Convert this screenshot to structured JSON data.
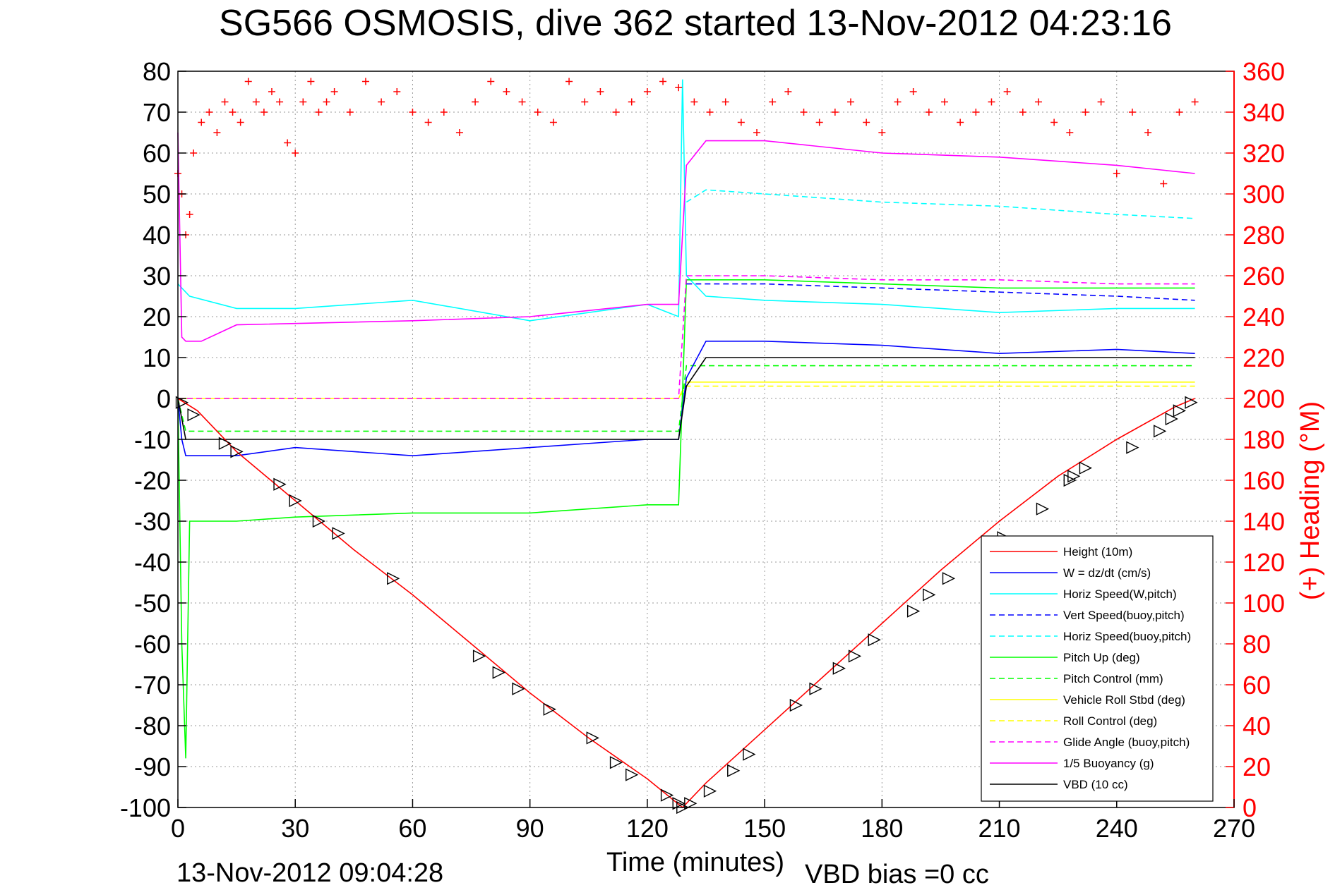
{
  "chart_data": {
    "type": "line",
    "title": "SG566 OSMOSIS, dive 362 started 13-Nov-2012 04:23:16",
    "xlabel": "Time (minutes)",
    "ylabel_right": "(+) Heading (°M)",
    "xlim": [
      0,
      270
    ],
    "ylim": [
      -100,
      80
    ],
    "ylim_right": [
      0,
      360
    ],
    "x_ticks": [
      0,
      30,
      60,
      90,
      120,
      150,
      180,
      210,
      240,
      270
    ],
    "y_ticks": [
      80,
      70,
      60,
      50,
      40,
      30,
      20,
      10,
      0,
      -10,
      -20,
      -30,
      -40,
      -50,
      -60,
      -70,
      -80,
      -90,
      -100
    ],
    "y_ticks_right": [
      360,
      340,
      320,
      300,
      280,
      260,
      240,
      220,
      200,
      180,
      160,
      140,
      120,
      100,
      80,
      60,
      40,
      20,
      0
    ],
    "grid": true,
    "legend_position": "lower-right",
    "footer_left": "13-Nov-2012 09:04:28",
    "footer_right": "VBD bias =0 cc",
    "series": [
      {
        "name": "Height (10m)",
        "color": "#ff0000",
        "style": "solid",
        "x": [
          0,
          5,
          15,
          30,
          45,
          60,
          75,
          90,
          105,
          120,
          129,
          135,
          150,
          165,
          180,
          195,
          210,
          225,
          240,
          255,
          260
        ],
        "y": [
          0,
          -3,
          -13,
          -25,
          -37,
          -48,
          -60,
          -72,
          -83,
          -93,
          -100,
          -94,
          -81,
          -68,
          -55,
          -42,
          -30,
          -19,
          -10,
          -2,
          0
        ]
      },
      {
        "name": "W = dz/dt (cm/s)",
        "color": "#0000ff",
        "style": "solid",
        "x": [
          0,
          1,
          2,
          15,
          30,
          60,
          90,
          120,
          128,
          130,
          135,
          150,
          180,
          210,
          240,
          260
        ],
        "y": [
          0,
          -10,
          -14,
          -14,
          -12,
          -14,
          -12,
          -10,
          -10,
          5,
          14,
          14,
          13,
          11,
          12,
          11
        ]
      },
      {
        "name": "Horiz Speed(W,pitch)",
        "color": "#00ffff",
        "style": "solid",
        "x": [
          0,
          3,
          15,
          30,
          60,
          90,
          120,
          128,
          129,
          130,
          135,
          150,
          180,
          210,
          240,
          260
        ],
        "y": [
          28,
          25,
          22,
          22,
          24,
          19,
          23,
          20,
          78,
          30,
          25,
          24,
          23,
          21,
          22,
          22
        ]
      },
      {
        "name": "Vert Speed(buoy,pitch)",
        "color": "#0000ff",
        "style": "dashed",
        "x": [
          130,
          135,
          150,
          180,
          210,
          240,
          260
        ],
        "y": [
          28,
          28,
          28,
          27,
          26,
          25,
          24
        ]
      },
      {
        "name": "Horiz Speed(buoy,pitch)",
        "color": "#00ffff",
        "style": "dashed",
        "x": [
          130,
          135,
          150,
          180,
          210,
          240,
          260
        ],
        "y": [
          48,
          51,
          50,
          48,
          47,
          45,
          44
        ]
      },
      {
        "name": "Pitch Up (deg)",
        "color": "#00ff00",
        "style": "solid",
        "x": [
          0,
          1,
          2,
          3,
          15,
          30,
          60,
          90,
          120,
          128,
          130,
          135,
          150,
          180,
          210,
          240,
          260
        ],
        "y": [
          0,
          -60,
          -88,
          -30,
          -30,
          -29,
          -28,
          -28,
          -26,
          -26,
          29,
          29,
          29,
          28,
          27,
          27,
          27
        ]
      },
      {
        "name": "Pitch Control (mm)",
        "color": "#00ff00",
        "style": "dashed",
        "x": [
          0,
          2,
          128,
          130,
          260
        ],
        "y": [
          0,
          -8,
          -8,
          8,
          8
        ]
      },
      {
        "name": "Vehicle Roll Stbd (deg)",
        "color": "#ffff00",
        "style": "solid",
        "x": [
          0,
          2,
          128,
          130,
          260
        ],
        "y": [
          0,
          0,
          0,
          4,
          4
        ]
      },
      {
        "name": "Roll Control (deg)",
        "color": "#ffff00",
        "style": "dashed",
        "x": [
          0,
          128,
          130,
          260
        ],
        "y": [
          0,
          0,
          3,
          3
        ]
      },
      {
        "name": "Glide Angle (buoy,pitch)",
        "color": "#ff00ff",
        "style": "dashed",
        "x": [
          0,
          128,
          130,
          150,
          180,
          210,
          240,
          260
        ],
        "y": [
          0,
          0,
          30,
          30,
          29,
          29,
          28,
          28
        ]
      },
      {
        "name": "1/5 Buoyancy (g)",
        "color": "#ff00ff",
        "style": "solid",
        "x": [
          0,
          1,
          2,
          6,
          15,
          60,
          90,
          120,
          128,
          130,
          135,
          150,
          180,
          210,
          240,
          260
        ],
        "y": [
          65,
          15,
          14,
          14,
          18,
          19,
          20,
          23,
          23,
          57,
          63,
          63,
          60,
          59,
          57,
          55
        ]
      },
      {
        "name": "VBD (10 cc)",
        "color": "#000000",
        "style": "solid",
        "x": [
          0,
          2,
          128,
          130,
          135,
          260
        ],
        "y": [
          0,
          -10,
          -10,
          3,
          10,
          10
        ]
      }
    ],
    "heading_points": {
      "name": "Heading",
      "axis": "right",
      "marker": "+",
      "color": "#ff0000",
      "x": [
        0,
        1,
        2,
        3,
        4,
        6,
        8,
        10,
        12,
        14,
        16,
        18,
        20,
        22,
        24,
        26,
        28,
        30,
        32,
        34,
        36,
        38,
        40,
        44,
        48,
        52,
        56,
        60,
        64,
        68,
        72,
        76,
        80,
        84,
        88,
        92,
        96,
        100,
        104,
        108,
        112,
        116,
        120,
        124,
        128,
        132,
        136,
        140,
        144,
        148,
        152,
        156,
        160,
        164,
        168,
        172,
        176,
        180,
        184,
        188,
        192,
        196,
        200,
        204,
        208,
        212,
        216,
        220,
        224,
        228,
        232,
        236,
        240,
        244,
        248,
        252,
        256,
        260
      ],
      "y": [
        310,
        300,
        280,
        290,
        320,
        335,
        340,
        330,
        345,
        340,
        335,
        355,
        345,
        340,
        350,
        345,
        325,
        320,
        345,
        355,
        340,
        345,
        350,
        340,
        355,
        345,
        350,
        340,
        335,
        340,
        330,
        345,
        355,
        350,
        345,
        340,
        335,
        355,
        345,
        350,
        340,
        345,
        350,
        355,
        352,
        345,
        340,
        345,
        335,
        330,
        345,
        350,
        340,
        335,
        340,
        345,
        335,
        330,
        345,
        350,
        340,
        345,
        335,
        340,
        345,
        350,
        340,
        345,
        335,
        330,
        340,
        345,
        310,
        340,
        330,
        305,
        340,
        345
      ]
    },
    "markers": {
      "name": "Height sample markers",
      "marker": "triangle",
      "color": "#000000",
      "x": [
        1,
        4,
        12,
        15,
        26,
        30,
        36,
        41,
        55,
        77,
        82,
        87,
        95,
        106,
        112,
        116,
        125,
        128,
        129,
        131,
        136,
        142,
        146,
        158,
        163,
        169,
        173,
        178,
        188,
        192,
        197,
        207,
        211,
        221,
        228,
        229,
        232,
        244,
        251,
        254,
        256,
        259
      ],
      "y": [
        -1,
        -4,
        -11,
        -13,
        -21,
        -25,
        -30,
        -33,
        -44,
        -63,
        -67,
        -71,
        -76,
        -83,
        -89,
        -92,
        -97,
        -99,
        -100,
        -99,
        -96,
        -91,
        -87,
        -75,
        -71,
        -66,
        -63,
        -59,
        -52,
        -48,
        -44,
        -37,
        -34,
        -27,
        -20,
        -19,
        -17,
        -12,
        -8,
        -5,
        -3,
        -1
      ]
    }
  }
}
